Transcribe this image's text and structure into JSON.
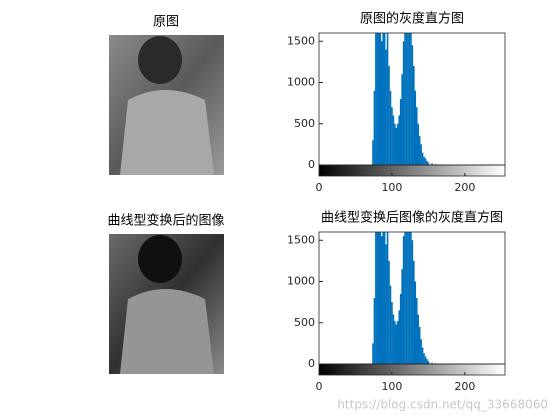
{
  "chart_data": [
    {
      "type": "image",
      "title": "原图"
    },
    {
      "type": "stem",
      "title": "原图的灰度直方图",
      "color": "#0072bd",
      "x": [
        74,
        76,
        78,
        80,
        82,
        84,
        86,
        88,
        90,
        92,
        94,
        96,
        98,
        100,
        102,
        104,
        106,
        108,
        110,
        112,
        114,
        116,
        118,
        120,
        122,
        124,
        126,
        128,
        130,
        132,
        134,
        136,
        138,
        140,
        142,
        144,
        146,
        148,
        150,
        155,
        160,
        170,
        180
      ],
      "values": [
        300,
        900,
        1800,
        1750,
        1900,
        1700,
        1500,
        1800,
        1650,
        1400,
        1700,
        1200,
        900,
        700,
        600,
        500,
        450,
        500,
        600,
        800,
        1100,
        1500,
        1800,
        1900,
        1750,
        1650,
        1700,
        1450,
        1200,
        900,
        700,
        500,
        350,
        250,
        150,
        100,
        80,
        50,
        30,
        20,
        10,
        5,
        3
      ],
      "xlim": [
        0,
        255
      ],
      "xticks": [
        0,
        100,
        200
      ],
      "ylim": [
        0,
        1600
      ],
      "yticks": [
        0,
        500,
        1000,
        1500
      ]
    },
    {
      "type": "image",
      "title": "曲线型变换后的图像"
    },
    {
      "type": "stem",
      "title": "曲线型变换后图像的灰度直方图",
      "color": "#0072bd",
      "x": [
        74,
        76,
        78,
        80,
        82,
        84,
        86,
        88,
        90,
        92,
        94,
        96,
        98,
        100,
        102,
        104,
        106,
        108,
        110,
        112,
        114,
        116,
        118,
        120,
        122,
        124,
        126,
        128,
        130,
        132,
        134,
        136,
        138,
        140,
        142,
        144,
        146,
        148,
        150,
        155,
        160,
        170,
        180
      ],
      "values": [
        250,
        800,
        1700,
        1800,
        1900,
        1750,
        1550,
        1800,
        1700,
        1450,
        1650,
        1250,
        950,
        750,
        600,
        520,
        480,
        520,
        650,
        850,
        1150,
        1550,
        1850,
        1900,
        1800,
        1700,
        1650,
        1500,
        1250,
        1000,
        800,
        600,
        450,
        300,
        200,
        130,
        90,
        60,
        35,
        15,
        8,
        4,
        2
      ],
      "xlim": [
        0,
        255
      ],
      "xticks": [
        0,
        100,
        200
      ],
      "ylim": [
        0,
        1600
      ],
      "yticks": [
        0,
        500,
        1000,
        1500
      ]
    }
  ],
  "watermark": "https://blog.csdn.net/qq_33668060"
}
